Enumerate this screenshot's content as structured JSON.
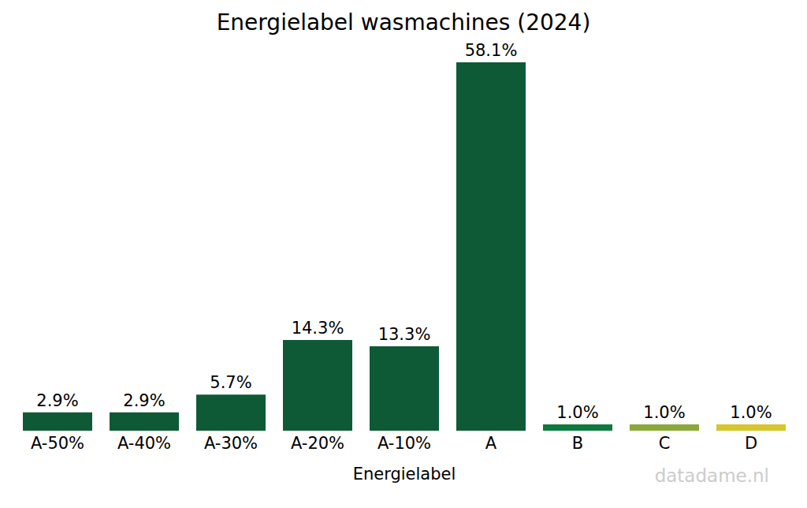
{
  "chart_data": {
    "type": "bar",
    "title": "Energielabel wasmachines (2024)",
    "x_label": "Energielabel",
    "annotation": "datadame.nl",
    "categories": [
      "A-50%",
      "A-40%",
      "A-30%",
      "A-20%",
      "A-10%",
      "A",
      "B",
      "C",
      "D"
    ],
    "values": [
      2.9,
      2.9,
      5.7,
      14.3,
      13.3,
      58.1,
      1.0,
      1.0,
      1.0
    ],
    "value_labels": [
      "2.9%",
      "2.9%",
      "5.7%",
      "14.3%",
      "13.3%",
      "58.1%",
      "1.0%",
      "1.0%",
      "1.0%"
    ],
    "colors": [
      "#0e5a36",
      "#0e5a36",
      "#0e5a36",
      "#0e5a36",
      "#0e5a36",
      "#0e5a36",
      "#0f7a3e",
      "#8aa93a",
      "#d6c52c"
    ],
    "data_labels": true,
    "tick_labels": "x",
    "grid": false
  }
}
